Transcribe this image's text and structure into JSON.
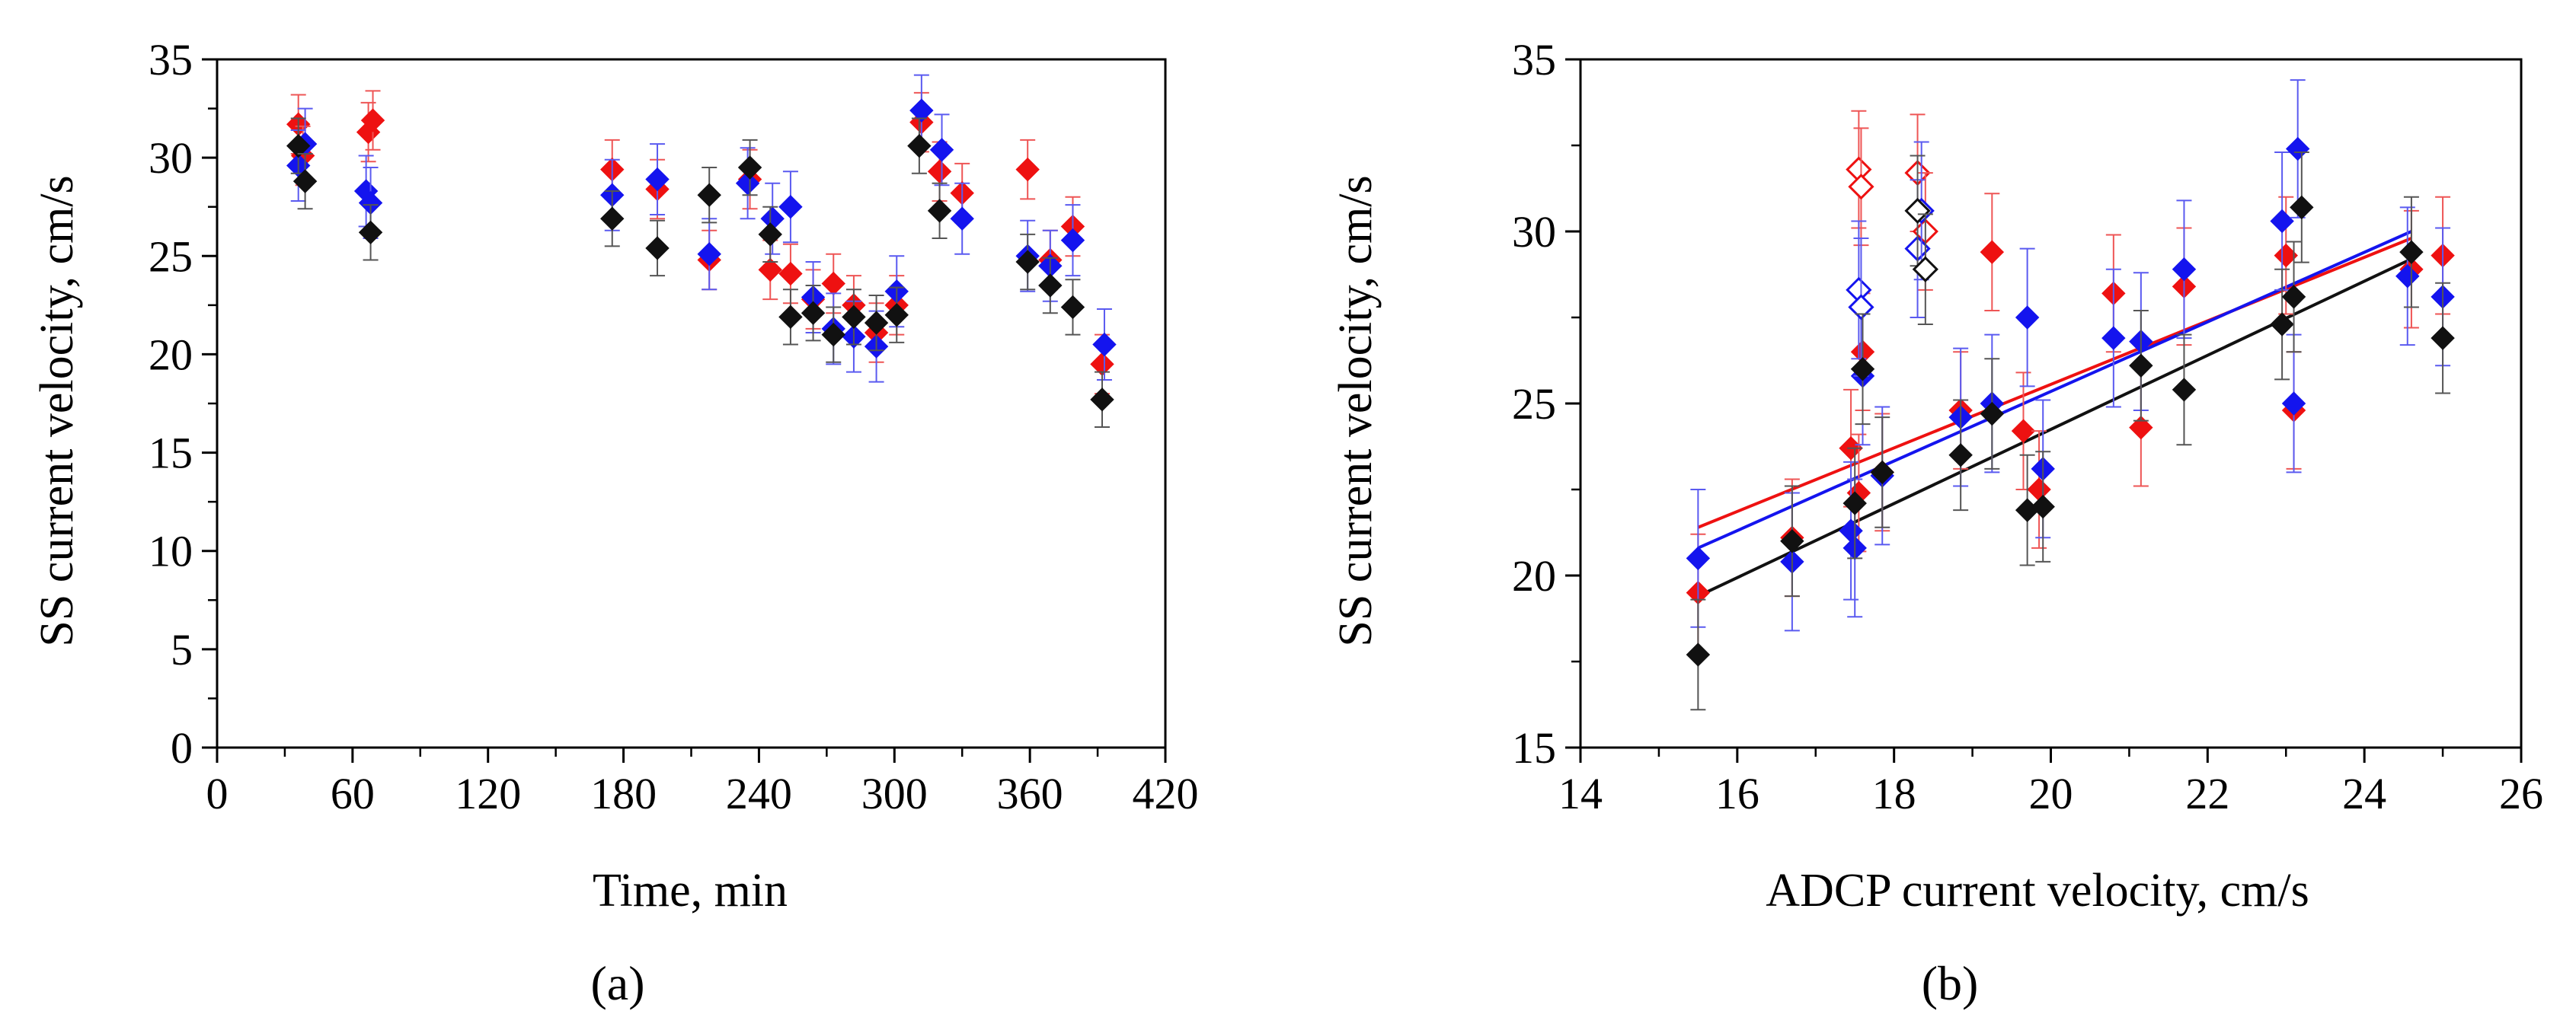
{
  "colors": {
    "red": "#ee1111",
    "blue": "#1414ee",
    "black": "#111111",
    "red_err": "#ee5555",
    "blue_err": "#5a5af0",
    "black_err": "#555555"
  },
  "chart_data": [
    {
      "type": "scatter",
      "panel_label": "(a)",
      "panel_letter": "a",
      "xlabel": "Time, min",
      "ylabel": "SS current velocity, cm/s",
      "xlim": [
        0,
        420
      ],
      "ylim": [
        0,
        35
      ],
      "xticks": [
        0,
        60,
        120,
        180,
        240,
        300,
        360,
        420
      ],
      "yticks": [
        0,
        5,
        10,
        15,
        20,
        25,
        30,
        35
      ],
      "series": [
        {
          "name": "red",
          "color": "#ee1111",
          "error": 1.5,
          "points": [
            [
              36,
              31.7
            ],
            [
              38,
              30.1
            ],
            [
              67,
              31.3
            ],
            [
              69,
              31.9
            ],
            [
              175,
              29.4
            ],
            [
              195,
              28.4
            ],
            [
              218,
              24.8
            ],
            [
              236,
              28.9
            ],
            [
              245,
              24.3
            ],
            [
              254,
              24.1
            ],
            [
              264,
              22.8
            ],
            [
              273,
              23.6
            ],
            [
              282,
              22.5
            ],
            [
              292,
              21.1
            ],
            [
              301,
              22.5
            ],
            [
              312,
              31.8
            ],
            [
              320,
              29.3
            ],
            [
              330,
              28.2
            ],
            [
              359,
              29.4
            ],
            [
              369,
              24.8
            ],
            [
              379,
              26.5
            ],
            [
              392,
              19.5
            ]
          ]
        },
        {
          "name": "blue",
          "color": "#1414ee",
          "error": 1.8,
          "points": [
            [
              36,
              29.6
            ],
            [
              39,
              30.7
            ],
            [
              66,
              28.3
            ],
            [
              68,
              27.7
            ],
            [
              175,
              28.1
            ],
            [
              195,
              28.9
            ],
            [
              218,
              25.1
            ],
            [
              235,
              28.7
            ],
            [
              246,
              26.9
            ],
            [
              254,
              27.5
            ],
            [
              264,
              22.9
            ],
            [
              273,
              21.3
            ],
            [
              282,
              20.9
            ],
            [
              292,
              20.4
            ],
            [
              301,
              23.2
            ],
            [
              312,
              32.4
            ],
            [
              321,
              30.4
            ],
            [
              330,
              26.9
            ],
            [
              359,
              25.0
            ],
            [
              369,
              24.5
            ],
            [
              379,
              25.8
            ],
            [
              393,
              20.5
            ]
          ]
        },
        {
          "name": "black",
          "color": "#111111",
          "error": 1.4,
          "points": [
            [
              36,
              30.6
            ],
            [
              39,
              28.8
            ],
            [
              68,
              26.2
            ],
            [
              175,
              26.9
            ],
            [
              195,
              25.4
            ],
            [
              218,
              28.1
            ],
            [
              236,
              29.5
            ],
            [
              245,
              26.1
            ],
            [
              254,
              21.9
            ],
            [
              264,
              22.1
            ],
            [
              273,
              21.0
            ],
            [
              282,
              21.9
            ],
            [
              292,
              21.6
            ],
            [
              301,
              22.0
            ],
            [
              311,
              30.6
            ],
            [
              320,
              27.3
            ],
            [
              359,
              24.7
            ],
            [
              369,
              23.5
            ],
            [
              379,
              22.4
            ],
            [
              392,
              17.7
            ]
          ]
        }
      ]
    },
    {
      "type": "scatter",
      "panel_label": "(b)",
      "panel_letter": "b",
      "xlabel": "ADCP current velocity, cm/s",
      "ylabel": "SS current velocity, cm/s",
      "xlim": [
        14,
        26
      ],
      "ylim": [
        15,
        35
      ],
      "xticks": [
        14,
        16,
        18,
        20,
        22,
        24,
        26
      ],
      "yticks": [
        15,
        20,
        25,
        30,
        35
      ],
      "series": [
        {
          "name": "red",
          "color": "#ee1111",
          "error": 1.7,
          "points": [
            [
              15.5,
              19.5
            ],
            [
              16.7,
              21.1
            ],
            [
              17.45,
              23.7
            ],
            [
              17.55,
              22.4
            ],
            [
              17.6,
              26.5
            ],
            [
              17.85,
              23.0
            ],
            [
              18.85,
              24.8
            ],
            [
              19.25,
              29.4
            ],
            [
              19.65,
              24.2
            ],
            [
              19.85,
              22.5
            ],
            [
              20.8,
              28.2
            ],
            [
              21.15,
              24.3
            ],
            [
              21.7,
              28.4
            ],
            [
              23.0,
              29.3
            ],
            [
              23.1,
              24.8
            ],
            [
              24.6,
              28.9
            ],
            [
              25.0,
              29.3
            ]
          ],
          "hollow_points": [
            [
              17.55,
              31.8
            ],
            [
              17.58,
              31.3
            ],
            [
              18.3,
              31.7
            ],
            [
              18.4,
              30.0
            ]
          ],
          "fit": [
            [
              15.5,
              21.4
            ],
            [
              24.6,
              29.8
            ]
          ]
        },
        {
          "name": "blue",
          "color": "#1414ee",
          "error": 2.0,
          "points": [
            [
              15.5,
              20.5
            ],
            [
              16.7,
              20.4
            ],
            [
              17.45,
              21.3
            ],
            [
              17.5,
              20.8
            ],
            [
              17.6,
              25.8
            ],
            [
              17.85,
              22.9
            ],
            [
              18.85,
              24.6
            ],
            [
              19.25,
              25.0
            ],
            [
              19.7,
              27.5
            ],
            [
              19.9,
              23.1
            ],
            [
              20.8,
              26.9
            ],
            [
              21.15,
              26.8
            ],
            [
              21.7,
              28.9
            ],
            [
              22.95,
              30.3
            ],
            [
              23.1,
              25.0
            ],
            [
              23.15,
              32.4
            ],
            [
              24.55,
              28.7
            ],
            [
              25.0,
              28.1
            ]
          ],
          "hollow_points": [
            [
              17.55,
              28.3
            ],
            [
              17.58,
              27.8
            ],
            [
              18.3,
              29.5
            ],
            [
              18.35,
              30.6
            ]
          ],
          "fit": [
            [
              15.5,
              20.8
            ],
            [
              24.6,
              30.0
            ]
          ]
        },
        {
          "name": "black",
          "color": "#111111",
          "error": 1.6,
          "points": [
            [
              15.5,
              17.7
            ],
            [
              16.7,
              21.0
            ],
            [
              17.5,
              22.1
            ],
            [
              17.6,
              26.0
            ],
            [
              17.85,
              23.0
            ],
            [
              18.85,
              23.5
            ],
            [
              19.25,
              24.7
            ],
            [
              19.7,
              21.9
            ],
            [
              19.9,
              22.0
            ],
            [
              21.15,
              26.1
            ],
            [
              21.7,
              25.4
            ],
            [
              22.95,
              27.3
            ],
            [
              23.1,
              28.1
            ],
            [
              23.2,
              30.7
            ],
            [
              24.6,
              29.4
            ],
            [
              25.0,
              26.9
            ]
          ],
          "hollow_points": [
            [
              18.3,
              30.6
            ],
            [
              18.4,
              28.9
            ]
          ],
          "fit": [
            [
              15.5,
              19.4
            ],
            [
              24.6,
              29.2
            ]
          ]
        }
      ]
    }
  ]
}
